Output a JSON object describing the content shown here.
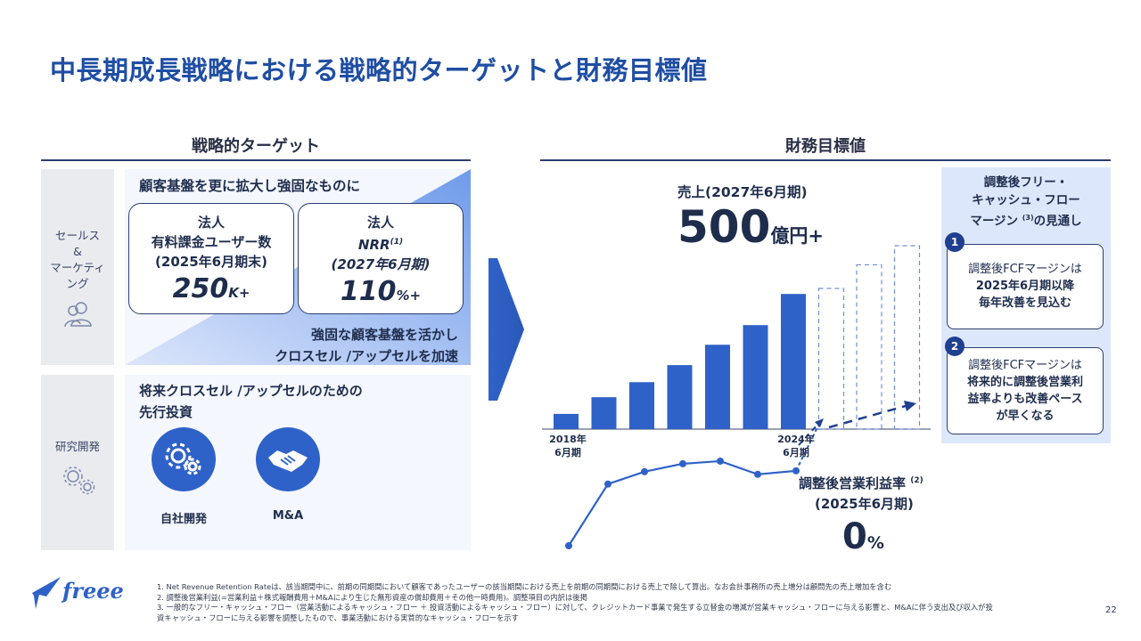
{
  "page": {
    "title": "中長期成長戦略における戦略的ターゲットと財務目標値",
    "page_number": "22"
  },
  "left": {
    "section_title": "戦略的ターゲット",
    "sales_label": "セールス\n&\nマーケティ\nング",
    "rd_label": "研究開発",
    "customer_heading": "顧客基盤を更に拡大し強固なものに",
    "card1": {
      "line1": "法人",
      "line2": "有料課金ユーザー数",
      "line3": "(2025年6月期末)",
      "value": "250",
      "unit": "K+"
    },
    "card2": {
      "line1": "法人",
      "line2": "NRR",
      "sup": "(1)",
      "line3": "(2027年6月期)",
      "value": "110",
      "unit": "%+"
    },
    "cross_sell_line1": "強固な顧客基盤を活かし",
    "cross_sell_line2": "クロスセル /アップセルを加速",
    "invest_line1": "将来クロスセル /アップセルのための",
    "invest_line2": "先行投資",
    "icon1_label": "自社開発",
    "icon2_label": "M&A"
  },
  "right": {
    "section_title": "財務目標値",
    "revenue_label": "売上(2027年6月期)",
    "revenue_value": "500",
    "revenue_unit": "億円+",
    "x_label_start_1": "2018年",
    "x_label_start_2": "6月期",
    "x_label_end_1": "2024年",
    "x_label_end_2": "6月期",
    "op_margin_label": "調整後営業利益率",
    "op_margin_sup": "(2)",
    "op_margin_period": "(2025年6月期)",
    "op_margin_value": "0",
    "op_margin_unit": "%",
    "fcf_title_1": "調整後フリー・",
    "fcf_title_2": "キャッシュ・フロー",
    "fcf_title_3a": "マージン ",
    "fcf_title_sup": "(3)",
    "fcf_title_3b": "の見通し",
    "note1_num": "1",
    "note1_line1": "調整後FCFマージンは",
    "note1_line2": "2025年6月期以降",
    "note1_line3": "毎年改善を見込む",
    "note2_num": "2",
    "note2_line1": "調整後FCFマージンは",
    "note2_line2": "将来的に調整後営業利",
    "note2_line3": "益率よりも改善ペース",
    "note2_line4": "が早くなる"
  },
  "chart_data": {
    "type": "bar",
    "bars": {
      "actual_relative_heights": [
        0.083,
        0.174,
        0.256,
        0.349,
        0.46,
        0.567,
        0.737
      ],
      "projected_relative_heights": [
        0.767,
        0.896,
        1.0
      ]
    },
    "line": {
      "relative_values": [
        0.0,
        0.7,
        0.84,
        0.93,
        0.96,
        0.81,
        0.85
      ]
    }
  },
  "footnotes": {
    "f1": "1.  Net Revenue Retention Rateは、該当期間中に、前期の同期間において顧客であったユーザーの該当期間における売上を前期の同期間における売上で除して算出。なお会計事務所の売上増分は顧問先の売上増加を含む",
    "f2": "2.  調整後営業利益(=営業利益＋株式報酬費用＋M&Aにより生じた無形資産の償却費用＋その他一時費用)。調整項目の内訳は後掲",
    "f3a": "3.  一般的なフリー・キャッシュ・フロー（営業活動によるキャッシュ・フロー  ＋  投資活動によるキャッシュ・フロー）に対して、クレジットカード事業で発生する立替金の増減が営業キャッシュ・フローに与える影響と、M&Aに伴う支出及び収入が投",
    "f3b": "資キャッシュ・フローに与える影響を調整したもので、事業活動における実質的なキャッシュ・フローを示す"
  },
  "logo": {
    "text": "freee"
  },
  "colors": {
    "brand": "#2f62c8",
    "title": "#1f4ea3",
    "navy": "#2c3f73",
    "light_panel": "#dde7fb"
  }
}
